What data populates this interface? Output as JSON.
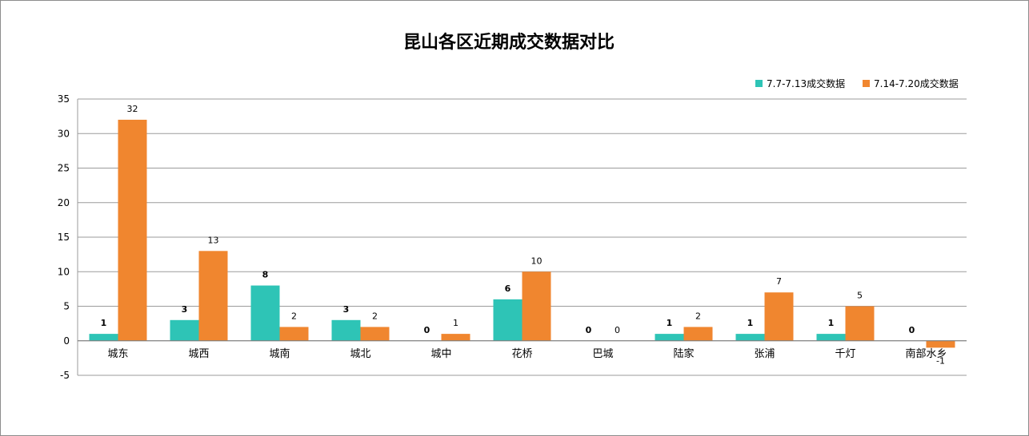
{
  "chart_data": {
    "type": "bar",
    "title": "昆山各区近期成交数据对比",
    "categories": [
      "城东",
      "城西",
      "城南",
      "城北",
      "城中",
      "花桥",
      "巴城",
      "陆家",
      "张浦",
      "千灯",
      "南部水乡"
    ],
    "series": [
      {
        "name": "7.7-7.13成交数据",
        "values": [
          1,
          3,
          8,
          3,
          0,
          6,
          0,
          1,
          1,
          1,
          0
        ],
        "color": "#2ec4b6"
      },
      {
        "name": "7.14-7.20成交数据",
        "values": [
          32,
          13,
          2,
          2,
          1,
          10,
          0,
          2,
          7,
          5,
          -1
        ],
        "color": "#f0862f"
      }
    ],
    "ylim": [
      -5,
      35
    ],
    "yticks": [
      "-5",
      "0",
      "5",
      "10",
      "15",
      "20",
      "25",
      "30",
      "35"
    ],
    "grid": true,
    "legend_position": "top-right",
    "xlabel": "",
    "ylabel": ""
  }
}
